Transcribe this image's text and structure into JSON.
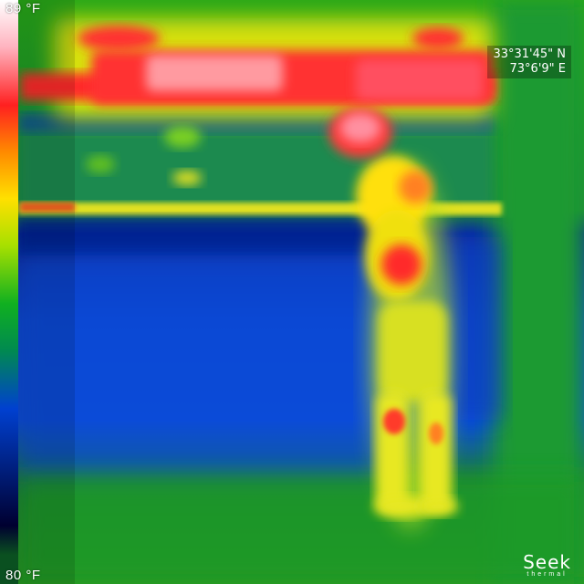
{
  "scale": {
    "max_label": "89 °F",
    "min_label": "80 °F"
  },
  "gps": {
    "latitude": "33°31'45\" N",
    "longitude": "73°6'9\" E"
  },
  "brand": {
    "name": "Seek",
    "sub": "thermal"
  },
  "palette": {
    "hot": "#ff3030",
    "warm": "#ffe000",
    "mid": "#10b020",
    "cool": "#0050e0",
    "cold": "#001a80"
  }
}
